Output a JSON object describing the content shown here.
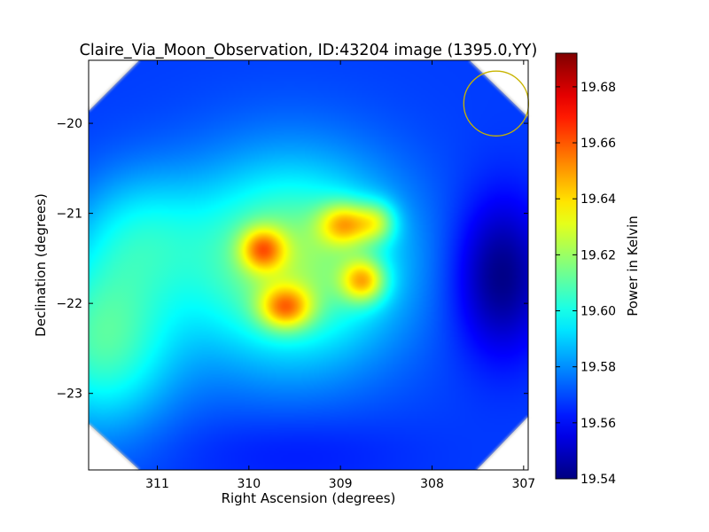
{
  "chart_data": {
    "type": "heatmap",
    "title": "Claire_Via_Moon_Observation, ID:43204 image (1395.0,YY)",
    "xlabel": "Right Ascension (degrees)",
    "ylabel": "Declination (degrees)",
    "xlim": [
      311.75,
      306.95
    ],
    "ylim": [
      -23.85,
      -19.3
    ],
    "x_ticks": [
      311,
      310,
      309,
      308,
      307
    ],
    "x_tick_labels": [
      "311",
      "310",
      "309",
      "308",
      "307"
    ],
    "y_ticks": [
      -20,
      -21,
      -22,
      -23
    ],
    "y_tick_labels": [
      "−20",
      "−21",
      "−22",
      "−23"
    ],
    "colorbar": {
      "label": "Power in Kelvin",
      "colormap": "jet",
      "range": [
        19.54,
        19.692
      ],
      "ticks": [
        19.54,
        19.56,
        19.58,
        19.6,
        19.62,
        19.64,
        19.66,
        19.68
      ],
      "tick_labels": [
        "19.54",
        "19.56",
        "19.58",
        "19.60",
        "19.62",
        "19.64",
        "19.66",
        "19.68"
      ]
    },
    "field": {
      "background": 19.568,
      "features": [
        {
          "ra": 309.55,
          "dec": -21.55,
          "sx": 0.85,
          "sy": 0.8,
          "amp": 0.052
        },
        {
          "ra": 309.85,
          "dec": -21.4,
          "sx": 0.17,
          "sy": 0.17,
          "amp": 0.045
        },
        {
          "ra": 309.6,
          "dec": -22.05,
          "sx": 0.2,
          "sy": 0.17,
          "amp": 0.048
        },
        {
          "ra": 308.95,
          "dec": -21.12,
          "sx": 0.2,
          "sy": 0.17,
          "amp": 0.045
        },
        {
          "ra": 308.75,
          "dec": -21.75,
          "sx": 0.17,
          "sy": 0.17,
          "amp": 0.048
        },
        {
          "ra": 308.6,
          "dec": -21.1,
          "sx": 0.15,
          "sy": 0.16,
          "amp": 0.03
        },
        {
          "ra": 311.6,
          "dec": -22.4,
          "sx": 0.55,
          "sy": 0.7,
          "amp": 0.04
        },
        {
          "ra": 311.2,
          "dec": -21.2,
          "sx": 0.5,
          "sy": 0.5,
          "amp": 0.02
        },
        {
          "ra": 307.25,
          "dec": -21.7,
          "sx": 0.35,
          "sy": 0.6,
          "amp": -0.028
        },
        {
          "ra": 309.5,
          "dec": -23.65,
          "sx": 0.9,
          "sy": 0.3,
          "amp": -0.006
        }
      ]
    },
    "masked_corners": [
      "top-left",
      "top-right",
      "bottom-left",
      "bottom-right"
    ],
    "beam_marker": {
      "ra": 307.3,
      "dec": -19.78,
      "radius_deg": 0.36,
      "color": "#c8b400"
    },
    "colors": {
      "axes": "#000000",
      "beam": "#c8b400"
    }
  }
}
